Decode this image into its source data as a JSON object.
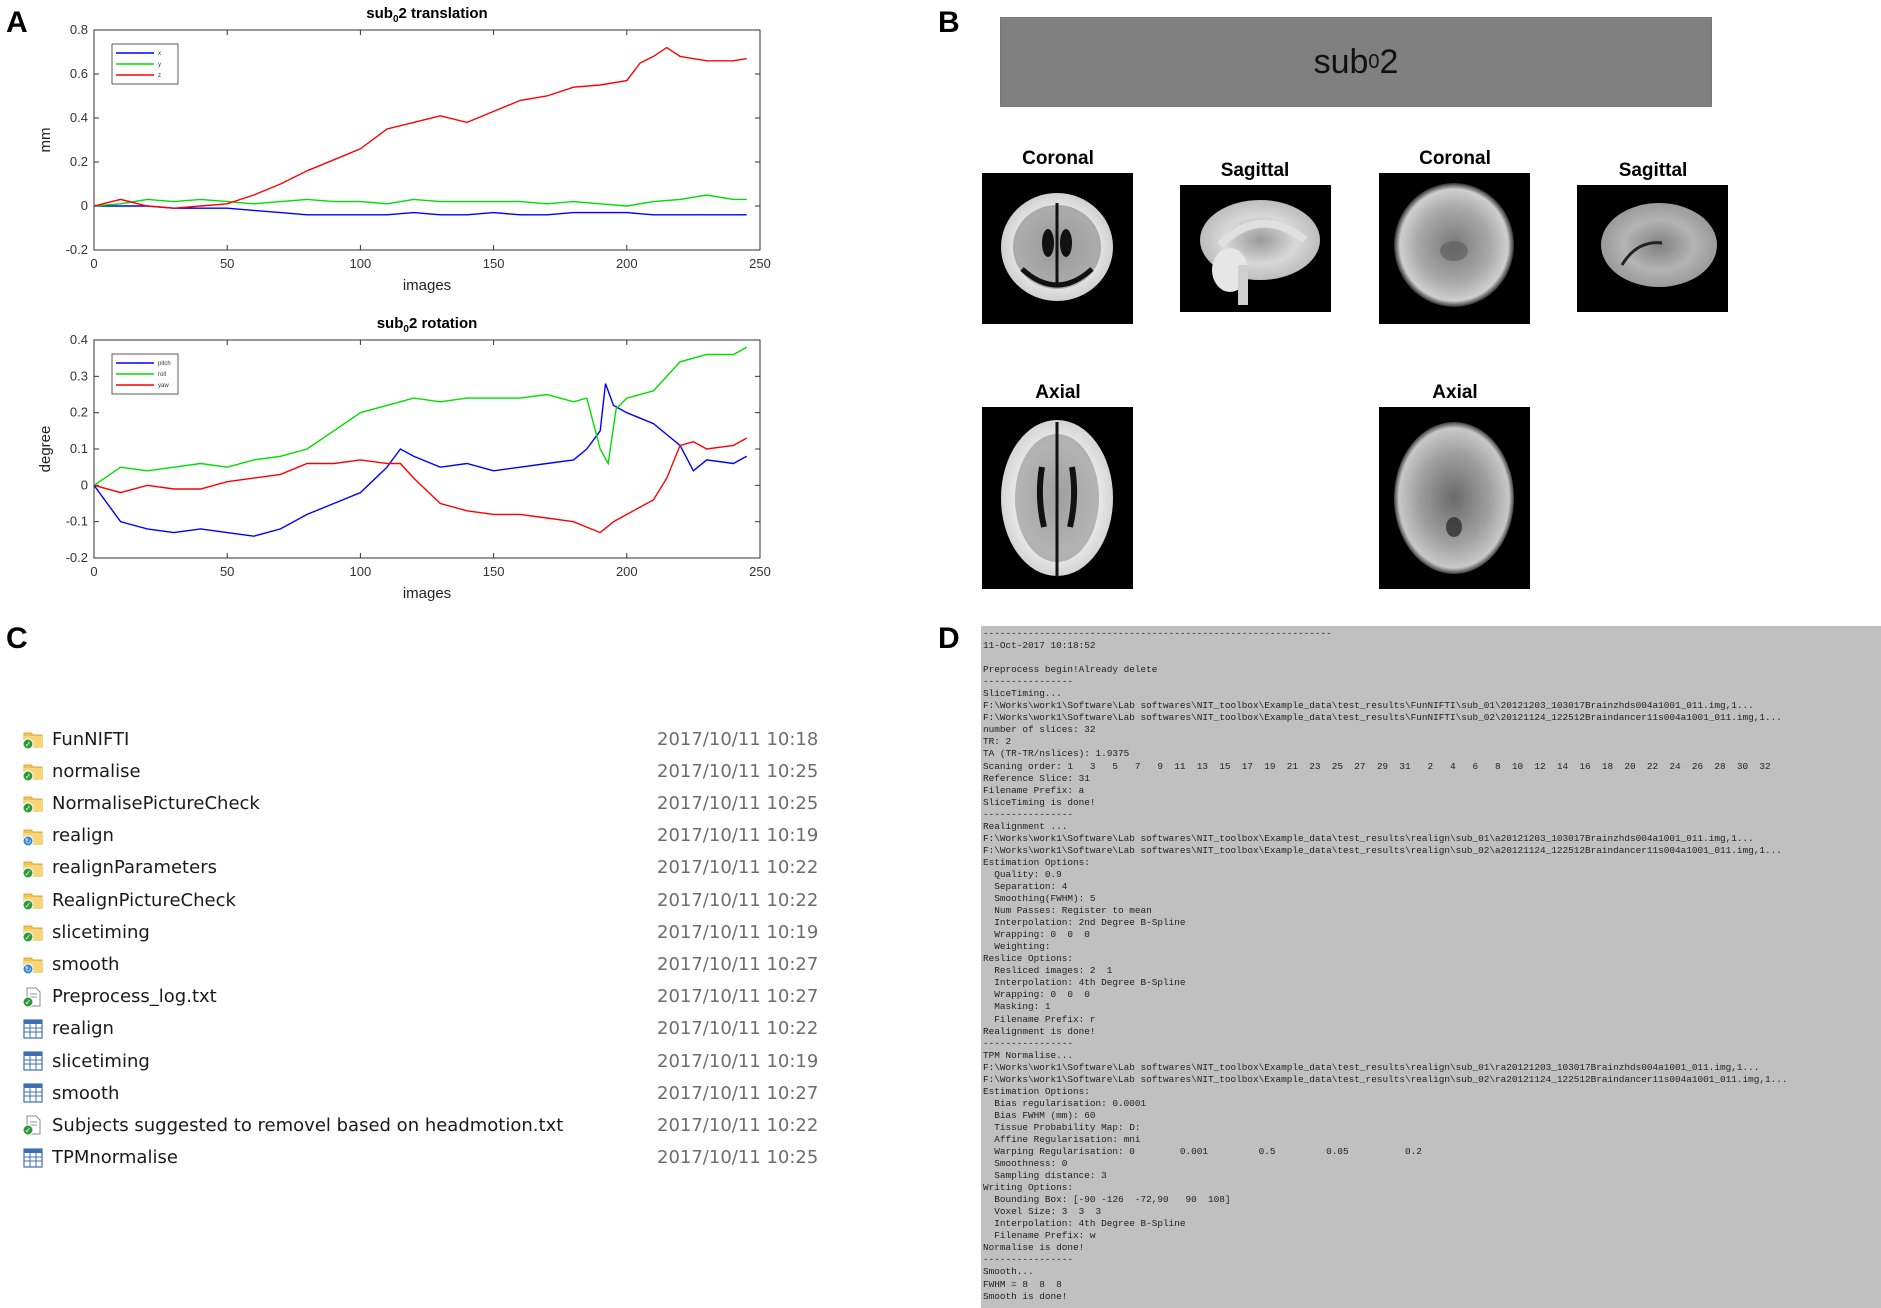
{
  "panel_letters": {
    "a": "A",
    "b": "B",
    "c": "C",
    "d": "D"
  },
  "chart_data": [
    {
      "type": "line",
      "title": "sub_02 translation",
      "title_parts": [
        "sub",
        "0",
        "2 translation"
      ],
      "xlabel": "images",
      "ylabel": "mm",
      "xlim": [
        0,
        250
      ],
      "ylim": [
        -0.2,
        0.8
      ],
      "xticks": [
        0,
        50,
        100,
        150,
        200,
        250
      ],
      "yticks": [
        -0.2,
        0,
        0.2,
        0.4,
        0.6,
        0.8
      ],
      "grid": false,
      "legend_position": "top-left",
      "series": [
        {
          "name": "x",
          "color": "#0000ff",
          "x": [
            0,
            10,
            20,
            30,
            40,
            50,
            60,
            70,
            80,
            90,
            100,
            110,
            120,
            130,
            140,
            150,
            160,
            170,
            180,
            190,
            200,
            210,
            220,
            230,
            240,
            245
          ],
          "y": [
            0,
            0,
            0,
            -0.01,
            -0.01,
            -0.01,
            -0.02,
            -0.03,
            -0.04,
            -0.04,
            -0.04,
            -0.04,
            -0.03,
            -0.04,
            -0.04,
            -0.03,
            -0.04,
            -0.04,
            -0.03,
            -0.03,
            -0.03,
            -0.04,
            -0.04,
            -0.04,
            -0.04,
            -0.04
          ]
        },
        {
          "name": "y",
          "color": "#00dd00",
          "x": [
            0,
            10,
            20,
            30,
            40,
            50,
            60,
            70,
            80,
            90,
            100,
            110,
            120,
            130,
            140,
            150,
            160,
            170,
            180,
            190,
            200,
            210,
            220,
            230,
            240,
            245
          ],
          "y": [
            0,
            0.01,
            0.03,
            0.02,
            0.03,
            0.02,
            0.01,
            0.02,
            0.03,
            0.02,
            0.02,
            0.01,
            0.03,
            0.02,
            0.02,
            0.02,
            0.02,
            0.01,
            0.02,
            0.01,
            0,
            0.02,
            0.03,
            0.05,
            0.03,
            0.03
          ]
        },
        {
          "name": "z",
          "color": "#ff0000",
          "x": [
            0,
            10,
            20,
            30,
            40,
            50,
            60,
            70,
            80,
            90,
            100,
            110,
            120,
            130,
            140,
            150,
            160,
            170,
            180,
            190,
            200,
            205,
            210,
            215,
            220,
            230,
            240,
            245
          ],
          "y": [
            0,
            0.03,
            0,
            -0.01,
            0,
            0.01,
            0.05,
            0.1,
            0.16,
            0.21,
            0.26,
            0.35,
            0.38,
            0.41,
            0.38,
            0.43,
            0.48,
            0.5,
            0.54,
            0.55,
            0.57,
            0.65,
            0.68,
            0.72,
            0.68,
            0.66,
            0.66,
            0.67
          ]
        }
      ]
    },
    {
      "type": "line",
      "title": "sub_02 rotation",
      "title_parts": [
        "sub",
        "0",
        "2 rotation"
      ],
      "xlabel": "images",
      "ylabel": "degree",
      "xlim": [
        0,
        250
      ],
      "ylim": [
        -0.2,
        0.4
      ],
      "xticks": [
        0,
        50,
        100,
        150,
        200,
        250
      ],
      "yticks": [
        -0.2,
        -0.1,
        0,
        0.1,
        0.2,
        0.3,
        0.4
      ],
      "grid": false,
      "legend_position": "top-left",
      "series": [
        {
          "name": "pitch",
          "color": "#0000ff",
          "x": [
            0,
            10,
            20,
            30,
            40,
            50,
            60,
            70,
            80,
            90,
            100,
            110,
            115,
            120,
            130,
            140,
            150,
            160,
            170,
            180,
            185,
            190,
            192,
            195,
            200,
            210,
            220,
            225,
            230,
            240,
            245
          ],
          "y": [
            0,
            -0.1,
            -0.12,
            -0.13,
            -0.12,
            -0.13,
            -0.14,
            -0.12,
            -0.08,
            -0.05,
            -0.02,
            0.05,
            0.1,
            0.08,
            0.05,
            0.06,
            0.04,
            0.05,
            0.06,
            0.07,
            0.1,
            0.15,
            0.28,
            0.22,
            0.2,
            0.17,
            0.11,
            0.04,
            0.07,
            0.06,
            0.08
          ]
        },
        {
          "name": "roll",
          "color": "#00dd00",
          "x": [
            0,
            10,
            20,
            30,
            40,
            50,
            60,
            70,
            80,
            90,
            100,
            110,
            120,
            130,
            140,
            150,
            160,
            170,
            180,
            185,
            190,
            193,
            196,
            200,
            210,
            220,
            230,
            240,
            245
          ],
          "y": [
            0,
            0.05,
            0.04,
            0.05,
            0.06,
            0.05,
            0.07,
            0.08,
            0.1,
            0.15,
            0.2,
            0.22,
            0.24,
            0.23,
            0.24,
            0.24,
            0.24,
            0.25,
            0.23,
            0.24,
            0.1,
            0.06,
            0.21,
            0.24,
            0.26,
            0.34,
            0.36,
            0.36,
            0.38
          ]
        },
        {
          "name": "yaw",
          "color": "#ff0000",
          "x": [
            0,
            10,
            20,
            30,
            40,
            50,
            60,
            70,
            80,
            90,
            100,
            110,
            115,
            120,
            130,
            140,
            150,
            160,
            170,
            180,
            190,
            195,
            200,
            210,
            215,
            220,
            225,
            230,
            240,
            245
          ],
          "y": [
            0,
            -0.02,
            0,
            -0.01,
            -0.01,
            0.01,
            0.02,
            0.03,
            0.06,
            0.06,
            0.07,
            0.06,
            0.06,
            0.02,
            -0.05,
            -0.07,
            -0.08,
            -0.08,
            -0.09,
            -0.1,
            -0.13,
            -0.1,
            -0.08,
            -0.04,
            0.02,
            0.11,
            0.12,
            0.1,
            0.11,
            0.13
          ]
        }
      ]
    }
  ],
  "panel_b": {
    "subject_label_main": "sub",
    "subject_label_sub": "0",
    "subject_label_end": "2",
    "views": [
      {
        "label": "Coronal",
        "kind": "template-coronal"
      },
      {
        "label": "Sagittal",
        "kind": "template-sagittal"
      },
      {
        "label": "Coronal",
        "kind": "epi-coronal"
      },
      {
        "label": "Sagittal",
        "kind": "epi-sagittal"
      },
      {
        "label": "Axial",
        "kind": "template-axial"
      },
      {
        "label": "Axial",
        "kind": "epi-axial"
      }
    ]
  },
  "file_list": [
    {
      "name": "FunNIFTI",
      "date": "2017/10/11 10:18",
      "icon": "folder-sync-icon"
    },
    {
      "name": "normalise",
      "date": "2017/10/11 10:25",
      "icon": "folder-sync-icon"
    },
    {
      "name": "NormalisePictureCheck",
      "date": "2017/10/11 10:25",
      "icon": "folder-sync-icon"
    },
    {
      "name": "realign",
      "date": "2017/10/11 10:19",
      "icon": "folder-syncing-icon"
    },
    {
      "name": "realignParameters",
      "date": "2017/10/11 10:22",
      "icon": "folder-sync-icon"
    },
    {
      "name": "RealignPictureCheck",
      "date": "2017/10/11 10:22",
      "icon": "folder-sync-icon"
    },
    {
      "name": "slicetiming",
      "date": "2017/10/11 10:19",
      "icon": "folder-sync-icon"
    },
    {
      "name": "smooth",
      "date": "2017/10/11 10:27",
      "icon": "folder-syncing-icon"
    },
    {
      "name": "Preprocess_log.txt",
      "date": "2017/10/11 10:27",
      "icon": "text-file-icon"
    },
    {
      "name": "realign",
      "date": "2017/10/11 10:22",
      "icon": "spreadsheet-file-icon"
    },
    {
      "name": "slicetiming",
      "date": "2017/10/11 10:19",
      "icon": "spreadsheet-file-icon"
    },
    {
      "name": "smooth",
      "date": "2017/10/11 10:27",
      "icon": "spreadsheet-file-icon"
    },
    {
      "name": "Subjects suggested to removel based on headmotion.txt",
      "date": "2017/10/11 10:22",
      "icon": "text-file-icon"
    },
    {
      "name": "TPMnormalise",
      "date": "2017/10/11 10:25",
      "icon": "spreadsheet-file-icon"
    }
  ],
  "log_lines": [
    "--------------------------------------------------------------",
    "11-Oct-2017 10:18:52",
    "",
    "Preprocess begin!Already delete",
    "----------------",
    "SliceTiming...",
    "F:\\Works\\work1\\Software\\Lab softwares\\NIT_toolbox\\Example_data\\test_results\\FunNIFTI\\sub_01\\20121203_103017Brainzhds004a1001_011.img,1...",
    "F:\\Works\\work1\\Software\\Lab softwares\\NIT_toolbox\\Example_data\\test_results\\FunNIFTI\\sub_02\\20121124_122512Braindancer11s004a1001_011.img,1...",
    "number of slices: 32",
    "TR: 2",
    "TA (TR-TR/nslices): 1.9375",
    "Scaning order: 1   3   5   7   9  11  13  15  17  19  21  23  25  27  29  31   2   4   6   8  10  12  14  16  18  20  22  24  26  28  30  32",
    "Reference Slice: 31",
    "Filename Prefix: a",
    "SliceTiming is done!",
    "----------------",
    "Realignment ...",
    "F:\\Works\\work1\\Software\\Lab softwares\\NIT_toolbox\\Example_data\\test_results\\realign\\sub_01\\a20121203_103017Brainzhds004a1001_011.img,1...",
    "F:\\Works\\work1\\Software\\Lab softwares\\NIT_toolbox\\Example_data\\test_results\\realign\\sub_02\\a20121124_122512Braindancer11s004a1001_011.img,1...",
    "Estimation Options:",
    "  Quality: 0.9",
    "  Separation: 4",
    "  Smoothing(FWHM): 5",
    "  Num Passes: Register to mean",
    "  Interpolation: 2nd Degree B-Spline",
    "  Wrapping: 0  0  0",
    "  Weighting:",
    "Reslice Options:",
    "  Resliced images: 2  1",
    "  Interpolation: 4th Degree B-Spline",
    "  Wrapping: 0  0  0",
    "  Masking: 1",
    "  Filename Prefix: r",
    "Realignment is done!",
    "----------------",
    "TPM Normalise...",
    "F:\\Works\\work1\\Software\\Lab softwares\\NIT_toolbox\\Example_data\\test_results\\realign\\sub_01\\ra20121203_103017Brainzhds004a1001_011.img,1...",
    "F:\\Works\\work1\\Software\\Lab softwares\\NIT_toolbox\\Example_data\\test_results\\realign\\sub_02\\ra20121124_122512Braindancer11s004a1001_011.img,1...",
    "Estimation Options:",
    "  Bias regularisation: 0.0001",
    "  Bias FWHM (mm): 60",
    "  Tissue Probability Map: D:",
    "  Affine Regularisation: mni",
    "  Warping Regularisation: 0        0.001         0.5         0.05          0.2",
    "  Smoothness: 0",
    "  Sampling distance: 3",
    "Writing Options:",
    "  Bounding Box: [-90 -126  -72,90   90  108]",
    "  Voxel Size: 3  3  3",
    "  Interpolation: 4th Degree B-Spline",
    "  Filename Prefix: w",
    "Normalise is done!",
    "----------------",
    "Smooth...",
    "FWHM = 8  8  8",
    "Smooth is done!"
  ]
}
